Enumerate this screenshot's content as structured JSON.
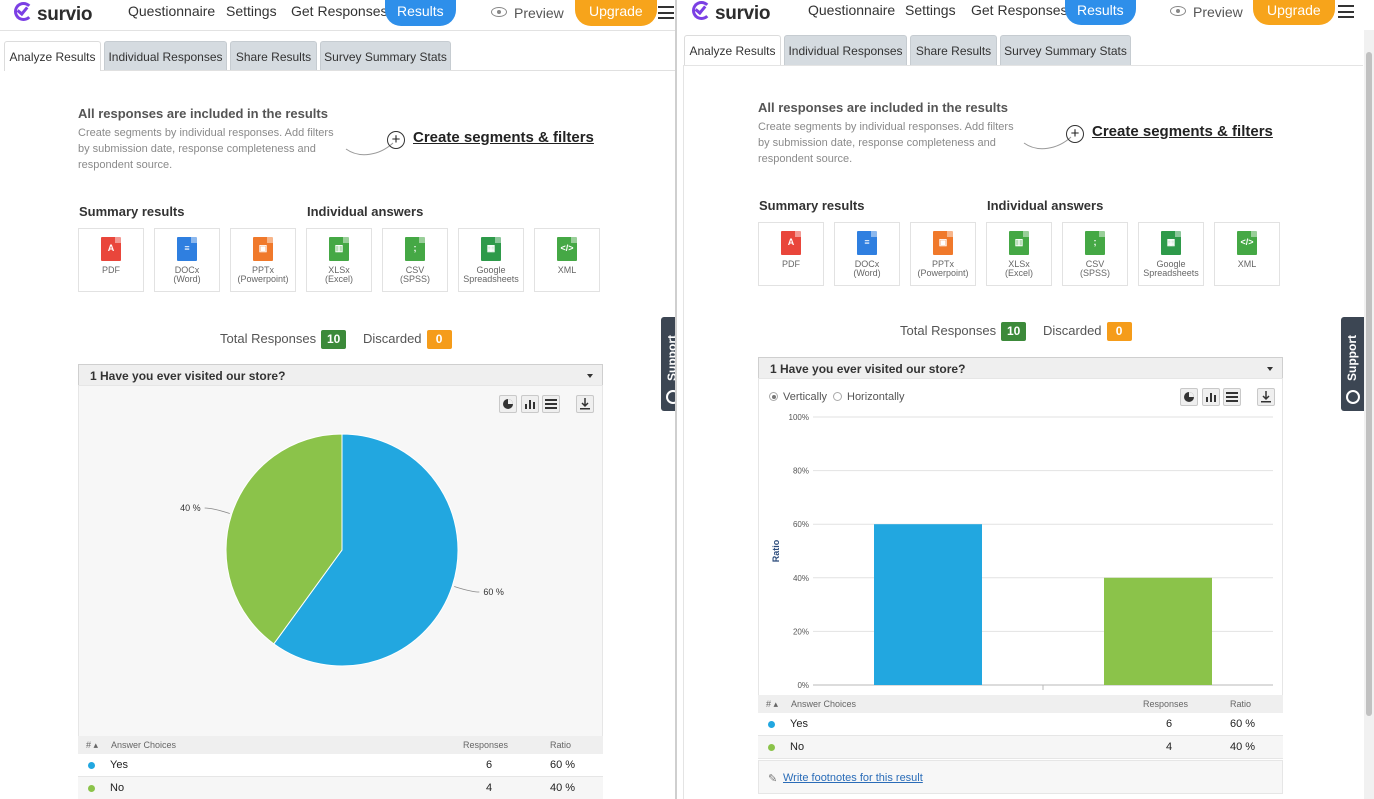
{
  "app": {
    "brand": "survio"
  },
  "nav": {
    "items": [
      "Questionnaire",
      "Settings",
      "Get Responses"
    ],
    "active": "Results",
    "preview": "Preview",
    "upgrade": "Upgrade"
  },
  "tabs": [
    "Analyze Results",
    "Individual Responses",
    "Share Results",
    "Survey Summary Stats"
  ],
  "info": {
    "title": "All responses are included in the results",
    "text": "Create segments by individual responses. Add filters by submission date, response completeness and respondent source.",
    "link": "Create segments & filters"
  },
  "sections": {
    "summary": "Summary results",
    "individual": "Individual answers"
  },
  "exports": [
    {
      "label": "PDF",
      "sub": "",
      "icon": "pdf-icon",
      "color": "#e9463b",
      "glyph": "A"
    },
    {
      "label": "DOCx",
      "sub": "(Word)",
      "icon": "word-doc-icon",
      "color": "#2f7fe0",
      "glyph": "≡"
    },
    {
      "label": "PPTx",
      "sub": "(Powerpoint)",
      "icon": "powerpoint-icon",
      "color": "#f0792b",
      "glyph": "▣"
    },
    {
      "label": "XLSx",
      "sub": "(Excel)",
      "icon": "excel-icon",
      "color": "#45a845",
      "glyph": "▥"
    },
    {
      "label": "CSV",
      "sub": "(SPSS)",
      "icon": "csv-icon",
      "color": "#45a845",
      "glyph": ";"
    },
    {
      "label": "Google",
      "sub": "Spreadsheets",
      "icon": "google-sheets-icon",
      "color": "#2e9a4a",
      "glyph": "▦"
    },
    {
      "label": "XML",
      "sub": "",
      "icon": "xml-icon",
      "color": "#45a845",
      "glyph": "</>"
    }
  ],
  "stats": {
    "total_label": "Total Responses",
    "total": "10",
    "discarded_label": "Discarded",
    "discarded": "0"
  },
  "question": "1 Have you ever visited our store?",
  "orientation": {
    "vertical": "Vertically",
    "horizontal": "Horizontally",
    "selected": "vertical"
  },
  "table": {
    "headers": {
      "num": "#",
      "choice": "Answer Choices",
      "responses": "Responses",
      "ratio": "Ratio"
    },
    "rows": [
      {
        "choice": "Yes",
        "responses": "6",
        "ratio": "60 %",
        "color": "#22a7e0"
      },
      {
        "choice": "No",
        "responses": "4",
        "ratio": "40 %",
        "color": "#8bc34a"
      }
    ]
  },
  "footnote": "Write footnotes for this result",
  "support": "Support",
  "chart_data": [
    {
      "type": "pie",
      "categories": [
        "Yes",
        "No"
      ],
      "values": [
        60,
        40
      ],
      "labels": [
        "60 %",
        "40 %"
      ],
      "colors": [
        "#22a7e0",
        "#8bc34a"
      ]
    },
    {
      "type": "bar",
      "categories": [
        "Yes",
        "No"
      ],
      "values": [
        60,
        40
      ],
      "colors": [
        "#22a7e0",
        "#8bc34a"
      ],
      "ylabel": "Ratio",
      "ylim": [
        0,
        100
      ],
      "yticks": [
        "0%",
        "20%",
        "40%",
        "60%",
        "80%",
        "100%"
      ],
      "grid": true
    }
  ]
}
